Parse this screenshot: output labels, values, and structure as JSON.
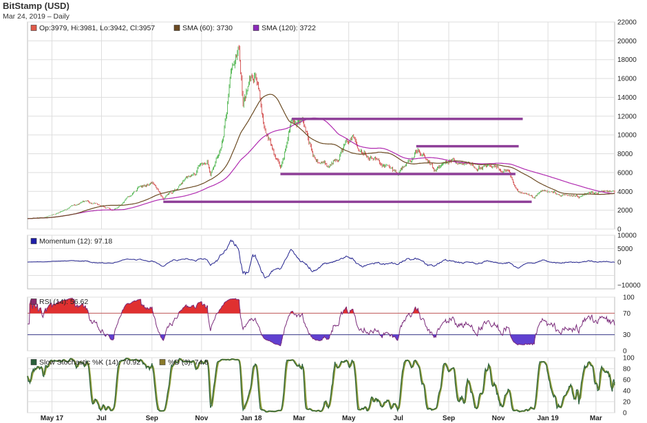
{
  "header": {
    "title": "BitStamp (USD)",
    "subtitle": "Mar 24, 2019 – Daily"
  },
  "colors": {
    "up_candle": "#33aa33",
    "down_candle": "#cc3333",
    "sma60": "#6b4a22",
    "sma120": "#b02ab0",
    "support_lines": "#8e3f98",
    "momentum": "#22228e",
    "rsi": "#7a2a7a",
    "rsi_fill_high": "#e03030",
    "rsi_fill_low": "#6040d0",
    "stoch_k": "#2a5f3a",
    "stoch_d": "#8a9a3a",
    "grid": "#dddddd"
  },
  "chart_data": [
    {
      "type": "candlestick",
      "legend": [
        {
          "label": "Op:3979, Hi:3981, Lo:3942, Cl:3957",
          "color": "#e05a4a"
        },
        {
          "label": "SMA (60): 3730",
          "color": "#6b4a22"
        },
        {
          "label": "SMA (120): 3722",
          "color": "#8a2ab8"
        }
      ],
      "ylim": [
        0,
        22000
      ],
      "y_ticks": [
        "0",
        "2000",
        "4000",
        "6000",
        "8000",
        "10000",
        "12000",
        "14000",
        "16000",
        "18000",
        "20000",
        "22000"
      ],
      "x_ticks": [
        "May 17",
        "Jul",
        "Sep",
        "Nov",
        "Jan 18",
        "Mar",
        "May",
        "Jul",
        "Sep",
        "Nov",
        "Jan 19",
        "Mar"
      ],
      "x_tick_dates": [
        "2017-05-01",
        "2017-07-01",
        "2017-09-01",
        "2017-11-01",
        "2018-01-01",
        "2018-03-01",
        "2018-05-01",
        "2018-07-01",
        "2018-09-01",
        "2018-11-01",
        "2019-01-01",
        "2019-03-01"
      ],
      "x_range": [
        "2017-04-01",
        "2019-03-24"
      ],
      "price_keypoints": [
        [
          "2017-04-01",
          1080
        ],
        [
          "2017-05-01",
          1400
        ],
        [
          "2017-05-25",
          2400
        ],
        [
          "2017-06-12",
          2950
        ],
        [
          "2017-07-16",
          1950
        ],
        [
          "2017-08-15",
          4300
        ],
        [
          "2017-09-01",
          4900
        ],
        [
          "2017-09-15",
          3200
        ],
        [
          "2017-10-01",
          4300
        ],
        [
          "2017-10-21",
          6000
        ],
        [
          "2017-11-08",
          7500
        ],
        [
          "2017-11-12",
          5900
        ],
        [
          "2017-11-28",
          9800
        ],
        [
          "2017-12-07",
          16500
        ],
        [
          "2017-12-17",
          19400
        ],
        [
          "2017-12-22",
          13500
        ],
        [
          "2018-01-06",
          17000
        ],
        [
          "2018-01-17",
          11000
        ],
        [
          "2018-02-06",
          6300
        ],
        [
          "2018-02-20",
          11500
        ],
        [
          "2018-03-05",
          11400
        ],
        [
          "2018-03-18",
          8000
        ],
        [
          "2018-04-06",
          6700
        ],
        [
          "2018-05-05",
          9800
        ],
        [
          "2018-06-01",
          7500
        ],
        [
          "2018-06-29",
          5900
        ],
        [
          "2018-07-25",
          8300
        ],
        [
          "2018-08-14",
          6200
        ],
        [
          "2018-09-04",
          7300
        ],
        [
          "2018-10-15",
          6500
        ],
        [
          "2018-11-13",
          6300
        ],
        [
          "2018-11-25",
          3800
        ],
        [
          "2018-12-15",
          3200
        ],
        [
          "2018-12-25",
          4000
        ],
        [
          "2019-01-20",
          3550
        ],
        [
          "2019-02-08",
          3450
        ],
        [
          "2019-02-24",
          3900
        ],
        [
          "2019-03-24",
          3957
        ]
      ],
      "horizontal_lines": [
        {
          "y": 11700,
          "from": "2018-02-20",
          "to": "2018-12-01"
        },
        {
          "y": 8800,
          "from": "2018-07-23",
          "to": "2018-11-26"
        },
        {
          "y": 5850,
          "from": "2018-02-06",
          "to": "2018-11-22"
        },
        {
          "y": 2900,
          "from": "2017-09-15",
          "to": "2018-12-12"
        }
      ]
    },
    {
      "type": "line",
      "legend": [
        {
          "label": "Momentum (12): 97.18",
          "color": "#1f1fa8"
        }
      ],
      "ylim": [
        -10000,
        10000
      ],
      "y_ticks": [
        "10000",
        "5000",
        "0",
        "−10000"
      ]
    },
    {
      "type": "line",
      "legend": [
        {
          "label": "RSI (14): 56.62",
          "color": "#8a2a6a"
        }
      ],
      "ylim": [
        0,
        100
      ],
      "y_ticks": [
        "100",
        "70",
        "30",
        "0"
      ],
      "reference_lines": [
        70,
        30
      ]
    },
    {
      "type": "line",
      "legend": [
        {
          "label": "Slow Stochastic %K (14): 70.92",
          "color": "#2a5f3a"
        },
        {
          "label": "%D (3): 74.8",
          "color": "#8a7a2a"
        }
      ],
      "ylim": [
        0,
        100
      ],
      "y_ticks": [
        "100",
        "80",
        "60",
        "40",
        "20",
        "0"
      ]
    }
  ]
}
